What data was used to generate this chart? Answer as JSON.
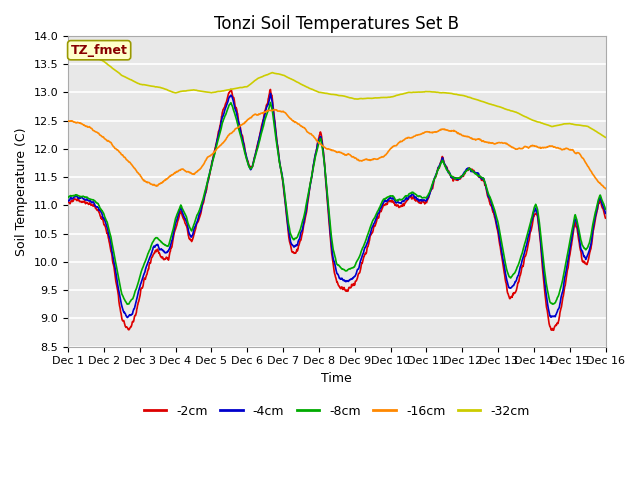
{
  "title": "Tonzi Soil Temperatures Set B",
  "xlabel": "Time",
  "ylabel": "Soil Temperature (C)",
  "ylim": [
    8.5,
    14.0
  ],
  "xlim": [
    0,
    15
  ],
  "xtick_labels": [
    "Dec 1",
    "Dec 2",
    "Dec 3",
    "Dec 4",
    "Dec 5",
    "Dec 6",
    "Dec 7",
    "Dec 8",
    "Dec 9",
    "Dec 10",
    "Dec 11",
    "Dec 12",
    "Dec 13",
    "Dec 14",
    "Dec 15",
    "Dec 16"
  ],
  "ytick_vals": [
    8.5,
    9.0,
    9.5,
    10.0,
    10.5,
    11.0,
    11.5,
    12.0,
    12.5,
    13.0,
    13.5,
    14.0
  ],
  "colors": {
    "-2cm": "#dd0000",
    "-4cm": "#0000cc",
    "-8cm": "#00aa00",
    "-16cm": "#ff8800",
    "-32cm": "#cccc00"
  },
  "legend_entries": [
    "-2cm",
    "-4cm",
    "-8cm",
    "-16cm",
    "-32cm"
  ],
  "annotation_text": "TZ_fmet",
  "annotation_box_facecolor": "#ffffcc",
  "annotation_box_edgecolor": "#999900",
  "annotation_text_color": "#880000",
  "fig_facecolor": "#ffffff",
  "axes_facecolor": "#e8e8e8",
  "grid_color": "#ffffff",
  "title_fontsize": 12,
  "axis_label_fontsize": 9,
  "tick_fontsize": 8,
  "legend_fontsize": 9,
  "linewidth": 1.2
}
